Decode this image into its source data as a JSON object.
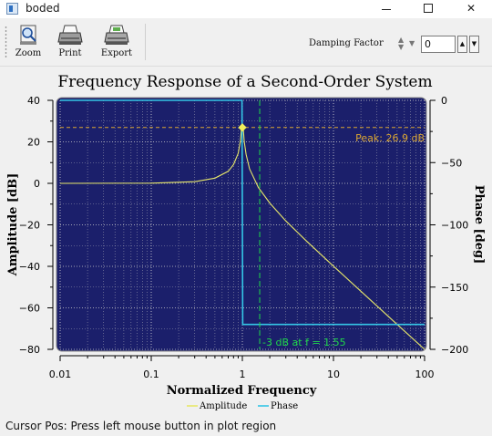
{
  "window": {
    "title": "boded",
    "minimize_glyph": "—",
    "close_glyph": "✕"
  },
  "toolbar": {
    "zoom_label": "Zoom",
    "zoom_icon": "magnifier-icon",
    "print_label": "Print",
    "print_icon": "printer-icon",
    "export_label": "Export",
    "export_icon": "printer-export-icon",
    "damping_label": "Damping Factor",
    "damping_value": "0"
  },
  "status": {
    "text": "Cursor Pos: Press left mouse button in plot region"
  },
  "chart_data": {
    "type": "line",
    "title": "Frequency Response of a Second-Order System",
    "xlabel": "Normalized Frequency",
    "ylabel_left": "Amplitude [dB]",
    "ylabel_right": "Phase [deg]",
    "x_scale": "log",
    "xlim": [
      0.01,
      100
    ],
    "x_ticks": [
      "0.01",
      "0.1",
      "1",
      "10",
      "100"
    ],
    "ylim_left": [
      -80,
      40
    ],
    "y_ticks_left": [
      "40",
      "20",
      "0",
      "−20",
      "−40",
      "−60",
      "−80"
    ],
    "ylim_right": [
      -200,
      0
    ],
    "y_ticks_right": [
      "0",
      "−50",
      "−100",
      "−150",
      "−200"
    ],
    "grid": true,
    "background": "#1b1f6b",
    "legend_placement": "bottom",
    "series": [
      {
        "name": "Amplitude",
        "color": "#e7e76a",
        "axis": "left",
        "x": [
          0.01,
          0.1,
          0.3,
          0.5,
          0.7,
          0.8,
          0.9,
          0.95,
          0.98,
          1.0,
          1.02,
          1.05,
          1.1,
          1.2,
          1.5,
          2,
          3,
          5,
          10,
          20,
          50,
          100
        ],
        "y": [
          0,
          0.1,
          0.8,
          2.5,
          5.8,
          9.0,
          14.4,
          20.2,
          26.9,
          26.9,
          26.9,
          20.0,
          14.0,
          7.0,
          -2.0,
          -9.5,
          -18.1,
          -27.6,
          -39.9,
          -52.0,
          -68.0,
          -80.0
        ]
      },
      {
        "name": "Phase",
        "color": "#34c6e6",
        "axis": "right",
        "x": [
          0.01,
          0.5,
          0.99,
          1.0,
          1.01,
          10,
          100
        ],
        "y": [
          0,
          0,
          0,
          -90,
          -180,
          -180,
          -180
        ]
      }
    ],
    "markers": [
      {
        "label": "Peak: 26.9 dB",
        "x": 1.0,
        "y": 26.9,
        "color": "#d9a533",
        "line": "horizontal-dashed"
      },
      {
        "label": "-3 dB at f = 1.55",
        "x": 1.55,
        "y": -80,
        "color": "#1fd84a",
        "line": "vertical-dashed"
      }
    ]
  }
}
